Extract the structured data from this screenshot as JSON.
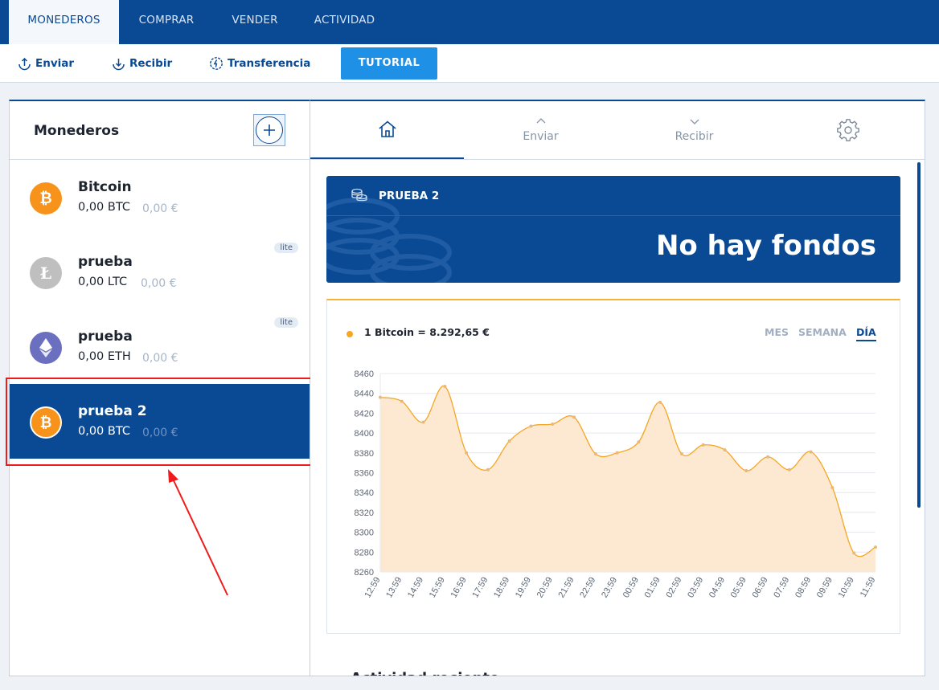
{
  "topnav": {
    "tabs": [
      {
        "label": "MONEDEROS",
        "active": true
      },
      {
        "label": "COMPRAR",
        "active": false
      },
      {
        "label": "VENDER",
        "active": false
      },
      {
        "label": "ACTIVIDAD",
        "active": false
      }
    ]
  },
  "toolbar": {
    "send_label": "Enviar",
    "receive_label": "Recibir",
    "transfer_label": "Transferencia",
    "tutorial_label": "TUTORIAL"
  },
  "wallets_panel": {
    "title": "Monederos",
    "wallets": [
      {
        "name": "Bitcoin",
        "balance": "0,00 BTC",
        "eur": "0,00 €",
        "coin_icon": "bitcoin-icon",
        "badge": null,
        "selected": false
      },
      {
        "name": "prueba",
        "balance": "0,00 LTC",
        "eur": "0,00 €",
        "coin_icon": "litecoin-icon",
        "badge": "lite",
        "selected": false
      },
      {
        "name": "prueba",
        "balance": "0,00 ETH",
        "eur": "0,00 €",
        "coin_icon": "ethereum-icon",
        "badge": "lite",
        "selected": false
      },
      {
        "name": "prueba 2",
        "balance": "0,00 BTC",
        "eur": "0,00 €",
        "coin_icon": "bitcoin-icon",
        "badge": null,
        "selected": true
      }
    ]
  },
  "detail": {
    "tabs": [
      {
        "icon": "home-icon",
        "label": ""
      },
      {
        "icon": "chevron-up-icon",
        "label": "Enviar"
      },
      {
        "icon": "chevron-down-icon",
        "label": "Recibir"
      },
      {
        "icon": "gear-icon",
        "label": ""
      }
    ],
    "wallet_name": "PRUEBA 2",
    "funds_message": "No hay fondos",
    "rate_label": "1 Bitcoin = 8.292,65 €",
    "periods": [
      {
        "label": "MES",
        "active": false
      },
      {
        "label": "SEMANA",
        "active": false
      },
      {
        "label": "DÍA",
        "active": true
      }
    ],
    "recent_title": "Actividad reciente"
  },
  "colors": {
    "brand": "#0a4a94",
    "accent": "#1e91e6",
    "bitcoin": "#f7931a",
    "chart_line": "#f5a623",
    "chart_fill": "#fde8d2"
  },
  "chart_data": {
    "type": "area",
    "x": [
      "12:59",
      "13:59",
      "14:59",
      "15:59",
      "16:59",
      "17:59",
      "18:59",
      "19:59",
      "20:59",
      "21:59",
      "22:59",
      "23:59",
      "00:59",
      "01:59",
      "02:59",
      "03:59",
      "04:59",
      "05:59",
      "06:59",
      "07:59",
      "08:59",
      "09:59",
      "10:59",
      "11:59"
    ],
    "series": [
      {
        "values": [
          8436,
          8432,
          8411,
          8447,
          8380,
          8363,
          8392,
          8407,
          8409,
          8416,
          8379,
          8380,
          8391,
          8431,
          8379,
          8388,
          8383,
          8362,
          8376,
          8363,
          8381,
          8345,
          8279,
          8285
        ]
      }
    ],
    "ylim": [
      8260,
      8460
    ],
    "yticks": [
      8260,
      8280,
      8300,
      8320,
      8340,
      8360,
      8380,
      8400,
      8420,
      8440,
      8460
    ],
    "grid": true
  }
}
